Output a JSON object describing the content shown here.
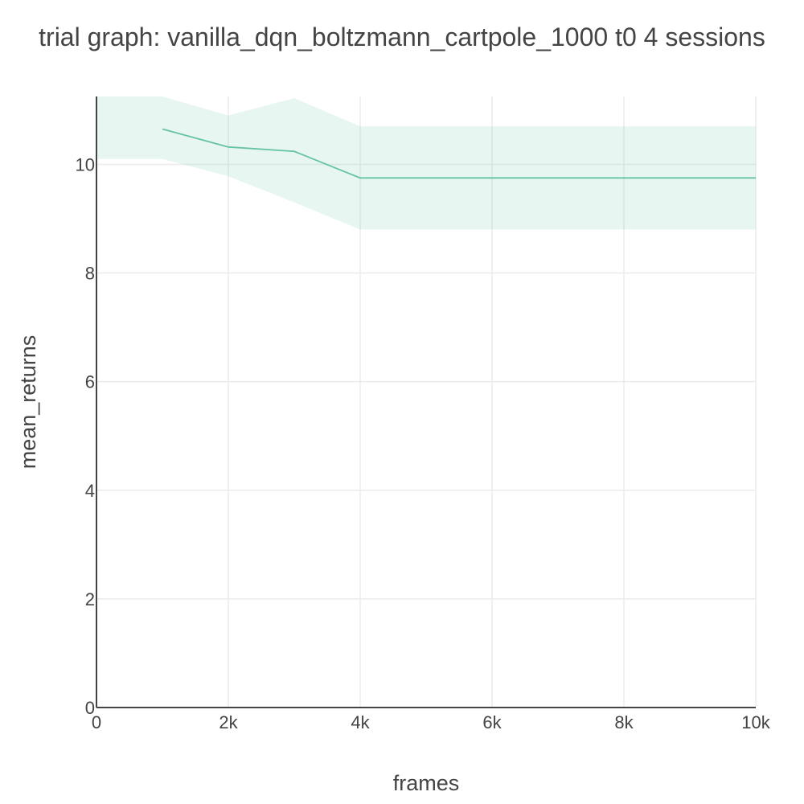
{
  "chart_data": {
    "type": "line",
    "title": "trial graph: vanilla_dqn_boltzmann_cartpole_1000 t0 4 sessions",
    "xlabel": "frames",
    "ylabel": "mean_returns",
    "xlim": [
      0,
      10000
    ],
    "ylim": [
      0,
      11.25
    ],
    "x_ticks": [
      {
        "value": 0,
        "label": "0"
      },
      {
        "value": 2000,
        "label": "2k"
      },
      {
        "value": 4000,
        "label": "4k"
      },
      {
        "value": 6000,
        "label": "6k"
      },
      {
        "value": 8000,
        "label": "8k"
      },
      {
        "value": 10000,
        "label": "10k"
      }
    ],
    "y_ticks": [
      {
        "value": 0,
        "label": "0"
      },
      {
        "value": 2,
        "label": "2"
      },
      {
        "value": 4,
        "label": "4"
      },
      {
        "value": 6,
        "label": "6"
      },
      {
        "value": 8,
        "label": "8"
      },
      {
        "value": 10,
        "label": "10"
      }
    ],
    "grid": true,
    "series": [
      {
        "x": [
          1000,
          2000,
          3000,
          4000,
          5000,
          6000,
          7000,
          8000,
          9000,
          10000
        ],
        "values": [
          10.65,
          10.32,
          10.24,
          9.75,
          9.75,
          9.75,
          9.75,
          9.75,
          9.75,
          9.75
        ],
        "color": "#66c2a5"
      }
    ],
    "band": {
      "x": [
        0,
        1000,
        2000,
        3000,
        4000,
        5000,
        6000,
        7000,
        8000,
        9000,
        10000
      ],
      "upper": [
        11.25,
        11.25,
        10.9,
        11.22,
        10.7,
        10.7,
        10.7,
        10.7,
        10.7,
        10.7,
        10.7
      ],
      "lower": [
        10.1,
        10.1,
        9.78,
        9.3,
        8.8,
        8.8,
        8.8,
        8.8,
        8.8,
        8.8,
        8.8
      ],
      "color": "#66c2a5",
      "opacity": 0.15
    }
  }
}
